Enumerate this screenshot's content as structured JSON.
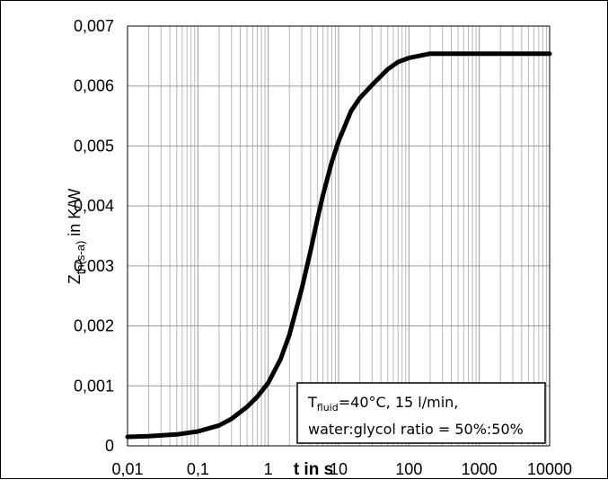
{
  "chart_data": {
    "type": "line",
    "xscale": "log",
    "xlim": [
      0.01,
      10000
    ],
    "ylim": [
      0,
      0.007
    ],
    "grid": true,
    "xlabel": "t in s",
    "ylabel": {
      "main": "Z",
      "subscript": "th(s-a)",
      "suffix": " in K/W"
    },
    "xticks": [
      "0,01",
      "0,1",
      "1",
      "10",
      "100",
      "1000",
      "10000"
    ],
    "yticks": [
      "0",
      "0,001",
      "0,002",
      "0,003",
      "0,004",
      "0,005",
      "0,006",
      "0,007"
    ],
    "annotation": {
      "line1_prefix": "T",
      "line1_sub": "fluid",
      "line1_rest": "=40°C, 15 l/min,",
      "line2": "water:glycol ratio = 50%:50%"
    },
    "series": [
      {
        "x": [
          0.01,
          0.02,
          0.05,
          0.1,
          0.2,
          0.3,
          0.5,
          0.7,
          1,
          1.5,
          2,
          3,
          4,
          5,
          6,
          7,
          8,
          10,
          15,
          20,
          30,
          50,
          70,
          100,
          150,
          200,
          300,
          1000,
          10000
        ],
        "y": [
          0.00015,
          0.00016,
          0.00019,
          0.00024,
          0.00034,
          0.00045,
          0.00065,
          0.00082,
          0.00105,
          0.00145,
          0.00185,
          0.00262,
          0.00325,
          0.00378,
          0.00418,
          0.00448,
          0.00473,
          0.00508,
          0.00558,
          0.0058,
          0.00602,
          0.00628,
          0.0064,
          0.00647,
          0.00651,
          0.00654,
          0.00654,
          0.00654,
          0.00654
        ],
        "color": "#000000"
      }
    ]
  }
}
